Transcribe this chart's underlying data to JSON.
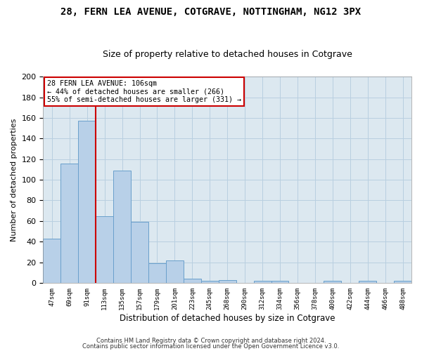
{
  "title": "28, FERN LEA AVENUE, COTGRAVE, NOTTINGHAM, NG12 3PX",
  "subtitle": "Size of property relative to detached houses in Cotgrave",
  "xlabel": "Distribution of detached houses by size in Cotgrave",
  "ylabel": "Number of detached properties",
  "categories": [
    "47sqm",
    "69sqm",
    "91sqm",
    "113sqm",
    "135sqm",
    "157sqm",
    "179sqm",
    "201sqm",
    "223sqm",
    "245sqm",
    "268sqm",
    "290sqm",
    "312sqm",
    "334sqm",
    "356sqm",
    "378sqm",
    "400sqm",
    "422sqm",
    "444sqm",
    "466sqm",
    "488sqm"
  ],
  "values": [
    43,
    116,
    157,
    65,
    109,
    59,
    19,
    22,
    4,
    2,
    3,
    0,
    2,
    2,
    0,
    0,
    2,
    0,
    2,
    0,
    2
  ],
  "bar_color": "#b8d0e8",
  "bar_edge_color": "#6aa0cc",
  "vline_color": "#cc0000",
  "annotation_text": "28 FERN LEA AVENUE: 106sqm\n← 44% of detached houses are smaller (266)\n55% of semi-detached houses are larger (331) →",
  "annotation_box_color": "#ffffff",
  "annotation_box_edge": "#cc0000",
  "ylim": [
    0,
    200
  ],
  "yticks": [
    0,
    20,
    40,
    60,
    80,
    100,
    120,
    140,
    160,
    180,
    200
  ],
  "footer1": "Contains HM Land Registry data © Crown copyright and database right 2024.",
  "footer2": "Contains public sector information licensed under the Open Government Licence v3.0.",
  "background_color": "#ffffff",
  "plot_bg_color": "#dce8f0",
  "grid_color": "#b8cfe0",
  "title_fontsize": 10,
  "subtitle_fontsize": 9
}
